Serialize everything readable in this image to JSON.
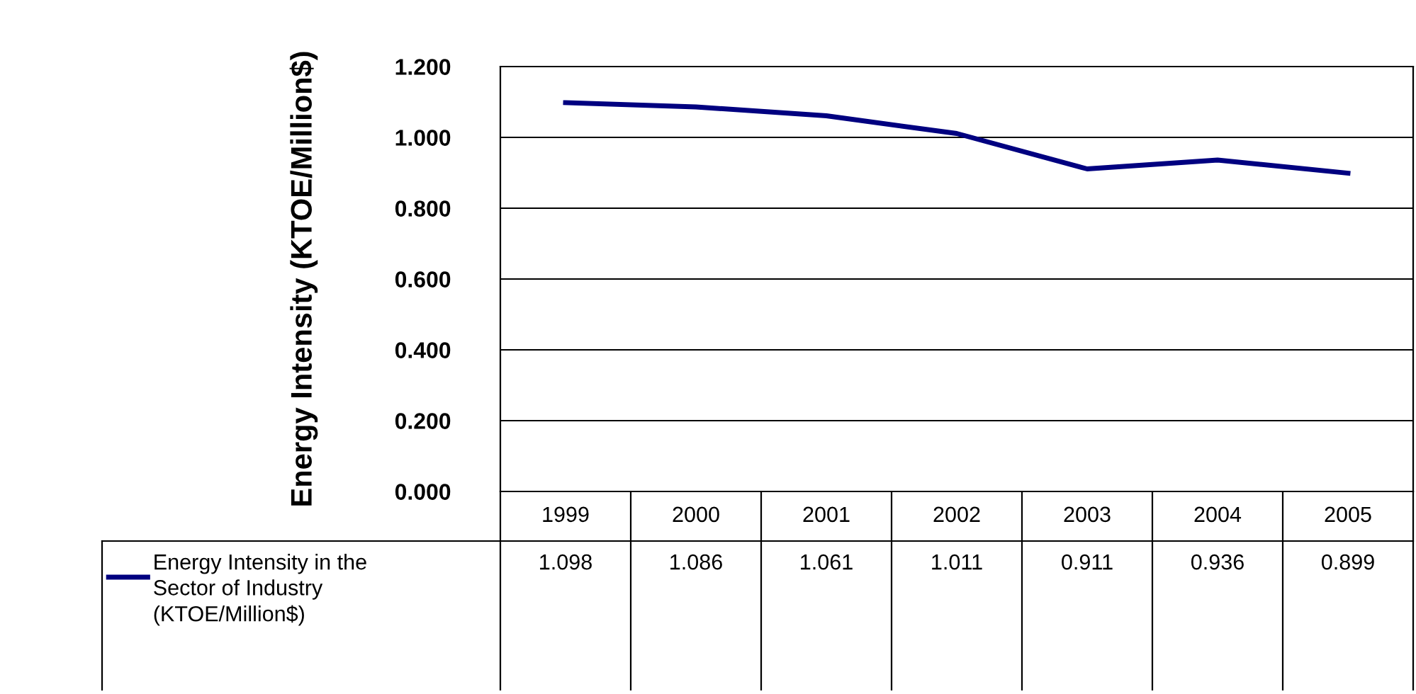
{
  "chart_data": {
    "type": "line",
    "ylabel": "Energy Intensity (KTOE/Million$)",
    "categories": [
      "1999",
      "2000",
      "2001",
      "2002",
      "2003",
      "2004",
      "2005"
    ],
    "series": [
      {
        "name": "Energy Intensity in the Sector of Industry (KTOE/Million$)",
        "color": "#000080",
        "values": [
          1.098,
          1.086,
          1.061,
          1.011,
          0.911,
          0.936,
          0.899
        ]
      }
    ],
    "ylim": [
      0,
      1.2
    ],
    "yticks": [
      {
        "value": 0,
        "label": "0.000"
      },
      {
        "value": 0.2,
        "label": "0.200"
      },
      {
        "value": 0.4,
        "label": "0.400"
      },
      {
        "value": 0.6,
        "label": "0.600"
      },
      {
        "value": 0.8,
        "label": "0.800"
      },
      {
        "value": 1.0,
        "label": "1.000"
      },
      {
        "value": 1.2,
        "label": "1.200"
      }
    ],
    "grid": "y",
    "marker": "none",
    "line_style": "solid",
    "data_labels": true
  }
}
